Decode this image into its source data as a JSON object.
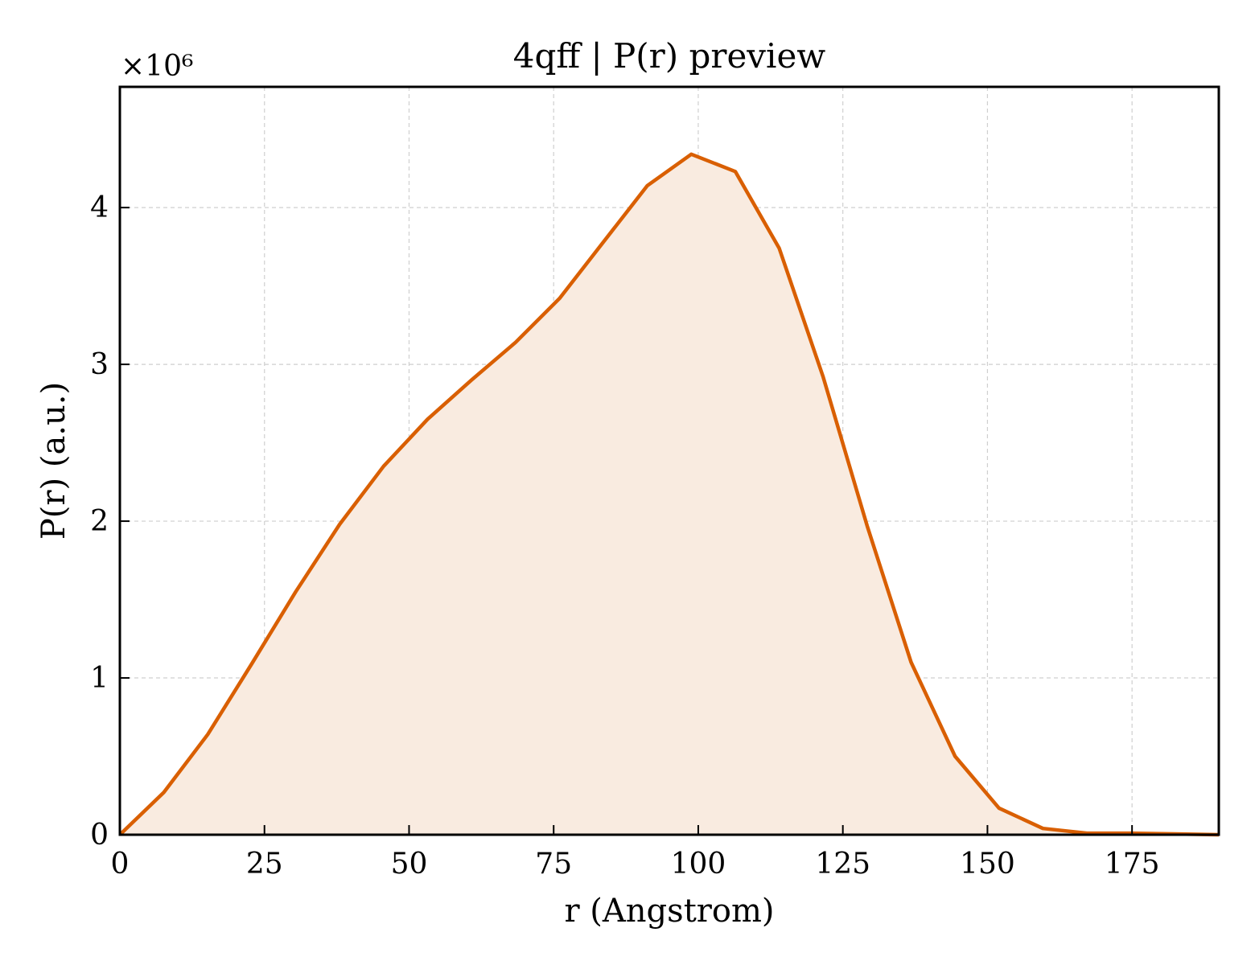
{
  "chart_data": {
    "type": "area",
    "title": "4qff | P(r) preview",
    "xlabel": "r (Angstrom)",
    "ylabel": "P(r) (a.u.)",
    "y_multiplier_label": "×10⁶",
    "xlim": [
      0,
      190
    ],
    "ylim": [
      0,
      4.77
    ],
    "x_ticks": [
      0,
      25,
      50,
      75,
      100,
      125,
      150,
      175
    ],
    "y_ticks": [
      0,
      1,
      2,
      3,
      4
    ],
    "grid": true,
    "line_color": "#d95f02",
    "fill_color": "#f9ebe0",
    "series": [
      {
        "x": [
          0,
          7.6,
          15.2,
          22.8,
          30.4,
          38.0,
          45.6,
          53.2,
          60.8,
          68.4,
          76.0,
          83.6,
          91.2,
          98.8,
          106.4,
          114.0,
          121.6,
          129.2,
          136.8,
          144.4,
          152.0,
          159.6,
          167.2,
          174.8,
          182.4,
          190.0
        ],
        "y": [
          0.0,
          0.27,
          0.64,
          1.09,
          1.55,
          1.98,
          2.35,
          2.65,
          2.9,
          3.14,
          3.42,
          3.78,
          4.14,
          4.34,
          4.23,
          3.74,
          2.92,
          1.97,
          1.1,
          0.5,
          0.17,
          0.04,
          0.01,
          0.01,
          0.005,
          0.0
        ]
      }
    ]
  }
}
